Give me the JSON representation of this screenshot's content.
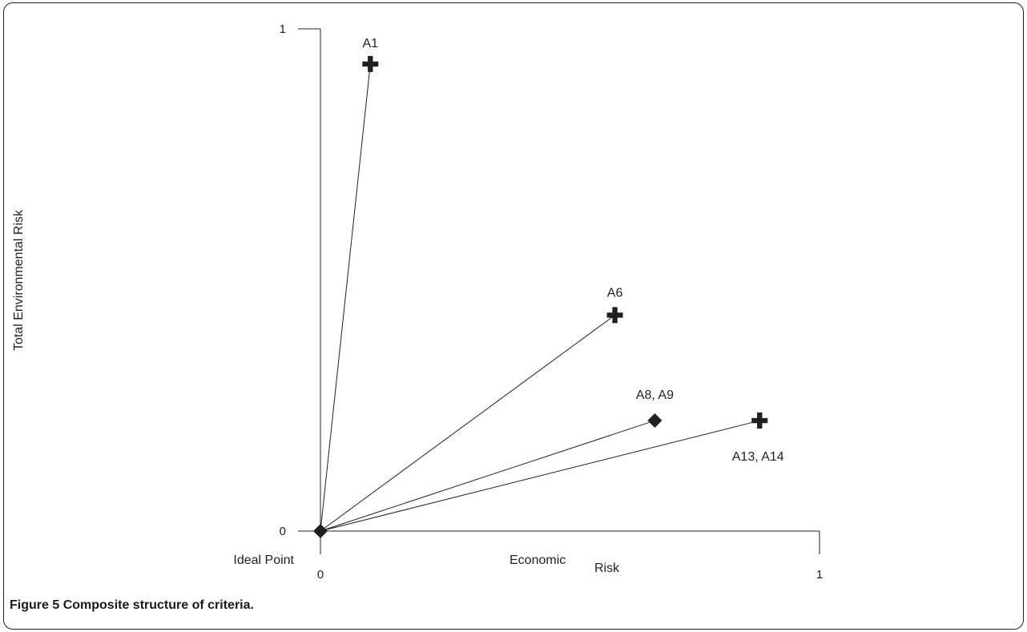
{
  "figure": {
    "caption_label": "Figure 5",
    "caption_text": "Composite structure of criteria."
  },
  "chart_data": {
    "type": "scatter",
    "title": "",
    "xlabel_parts": [
      "Economic",
      "Risk"
    ],
    "ylabel": "Total Environmental Risk",
    "xlim": [
      0,
      1
    ],
    "ylim": [
      0,
      1
    ],
    "x_ticks": [
      "0",
      "1"
    ],
    "y_ticks": [
      "0",
      "1"
    ],
    "grid": false,
    "origin_label": "Ideal Point",
    "origin": {
      "x": 0,
      "y": 0,
      "marker": "diamond"
    },
    "points": [
      {
        "label": "A1",
        "x": 0.1,
        "y": 0.93,
        "marker": "cross"
      },
      {
        "label": "A6",
        "x": 0.59,
        "y": 0.43,
        "marker": "cross"
      },
      {
        "label": "A8, A9",
        "x": 0.67,
        "y": 0.22,
        "marker": "diamond"
      },
      {
        "label": "A13, A14",
        "x": 0.88,
        "y": 0.22,
        "marker": "cross"
      }
    ],
    "colors": {
      "ink": "#231f20",
      "frame": "#231f20"
    }
  }
}
